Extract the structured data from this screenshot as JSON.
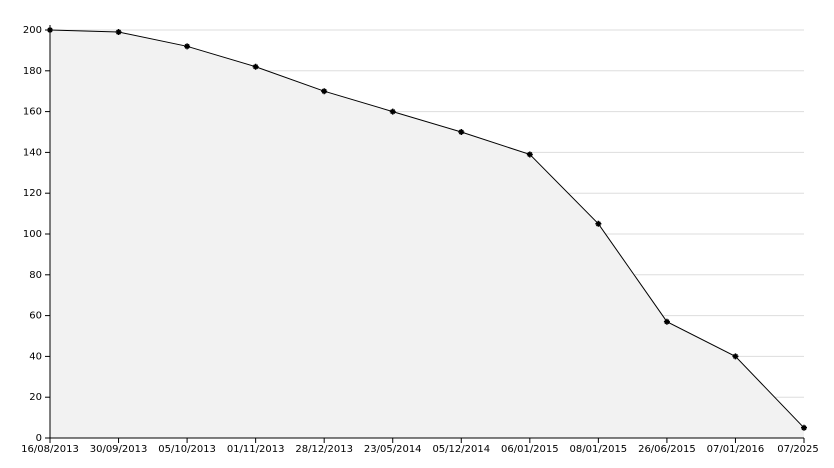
{
  "chart_data": {
    "type": "area",
    "categories": [
      "16/08/2013",
      "30/09/2013",
      "05/10/2013",
      "01/11/2013",
      "28/12/2013",
      "23/05/2014",
      "05/12/2014",
      "06/01/2015",
      "08/01/2015",
      "26/06/2015",
      "07/01/2016",
      "07/2025"
    ],
    "values": [
      200,
      199,
      192,
      182,
      170,
      160,
      150,
      139,
      105,
      57,
      40,
      5
    ],
    "color": "#000000",
    "fill": "#f2f2f2",
    "ylim": [
      0,
      200
    ],
    "yticks": [
      0,
      20,
      40,
      60,
      80,
      100,
      120,
      140,
      160,
      180,
      200
    ],
    "grid": true
  }
}
